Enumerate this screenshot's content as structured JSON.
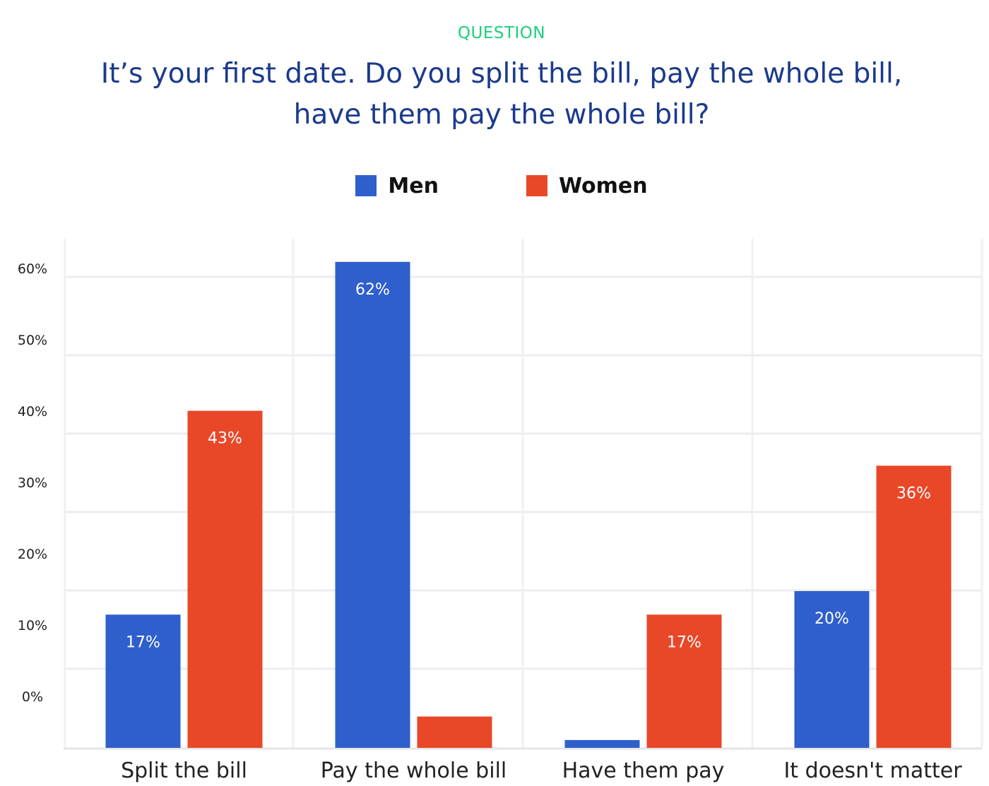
{
  "header": {
    "eyebrow": "QUESTION",
    "title": "It’s your first date. Do you split the bill, pay the whole bill, have them pay the whole bill?"
  },
  "legend": [
    {
      "name": "Men",
      "color": "#2f5fcc"
    },
    {
      "name": "Women",
      "color": "#e84828"
    }
  ],
  "chart_data": {
    "type": "bar",
    "categories": [
      "Split the bill",
      "Pay the whole bill",
      "Have them pay",
      "It doesn't matter"
    ],
    "series": [
      {
        "name": "Men",
        "color": "#2f5fcc",
        "values": [
          17,
          62,
          1,
          20
        ],
        "labels": [
          "17%",
          "62%",
          "",
          "20%"
        ]
      },
      {
        "name": "Women",
        "color": "#e84828",
        "values": [
          43,
          4,
          17,
          36
        ],
        "labels": [
          "43%",
          "",
          "17%",
          "36%"
        ]
      }
    ],
    "y_ticks": [
      {
        "value": 0,
        "label": "0%"
      },
      {
        "value": 10,
        "label": "10%"
      },
      {
        "value": 20,
        "label": "20%"
      },
      {
        "value": 30,
        "label": "30%"
      },
      {
        "value": 40,
        "label": "40%"
      },
      {
        "value": 50,
        "label": "50%"
      },
      {
        "value": 60,
        "label": "60%"
      }
    ],
    "ylim": [
      0,
      65
    ],
    "grid": true,
    "legend_position": "top-center",
    "xlabel": "",
    "ylabel": ""
  }
}
